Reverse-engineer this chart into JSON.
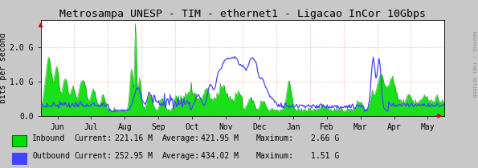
{
  "title": "Metrosampa UNESP - TIM - ethernet1 - Ligacao InCor 10Gbps",
  "ylabel": "bits per second",
  "bg_color": "#c8c8c8",
  "plot_bg_color": "#ffffff",
  "grid_color": "#ff9999",
  "inbound_fill_color": "#00dd00",
  "inbound_line_color": "#007700",
  "outbound_color": "#4444ff",
  "x_labels": [
    "Jun",
    "Jul",
    "Aug",
    "Sep",
    "Oct",
    "Nov",
    "Dec",
    "Jan",
    "Feb",
    "Mar",
    "Apr",
    "May"
  ],
  "ytick_labels": [
    "0.0",
    "1.0 G",
    "2.0 G"
  ],
  "ytick_vals": [
    0.0,
    1.0,
    2.0
  ],
  "ylim": [
    0.0,
    2.8
  ],
  "title_fontsize": 9.5,
  "tick_fontsize": 7,
  "ylabel_fontsize": 7,
  "legend_fontsize": 7,
  "legend_inbound_label": "Inbound",
  "legend_outbound_label": "Outbound",
  "legend_inbound_current": "221.16 M",
  "legend_inbound_average": "421.95 M",
  "legend_inbound_maximum": "2.66 G",
  "legend_outbound_current": "252.95 M",
  "legend_outbound_average": "434.02 M",
  "legend_outbound_maximum": "1.51 G",
  "rrdtool_text": "RRDTOOL / TOBI OETIKER",
  "arrow_color": "#cc0000",
  "n_points": 500
}
